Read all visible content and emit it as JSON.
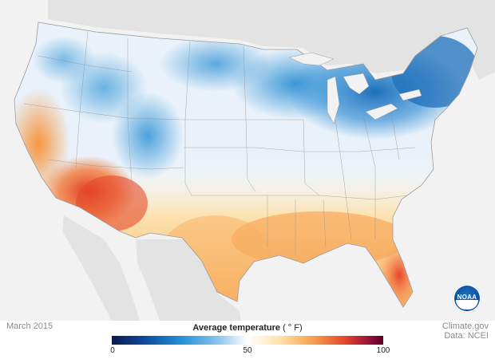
{
  "map": {
    "legend_title": "Average temperature",
    "legend_unit": "( ° F)",
    "ticks": [
      "0",
      "50",
      "100"
    ],
    "scale": {
      "min": 0,
      "max": 100
    },
    "colors": {
      "cold": "#0d4a9b",
      "cool": "#1f8ed6",
      "neutral": "#ffffff",
      "warm": "#f9a04f",
      "hot": "#e4452b",
      "hottest": "#8c0a3a",
      "land_outside": "#e3e3e3",
      "water": "#f2f2f2"
    }
  },
  "date_label": "March 2015",
  "credit": {
    "line1": "Climate.gov",
    "line2": "Data: NCEI"
  },
  "logo": {
    "icon": "noaa-logo-icon",
    "text": "NOAA"
  }
}
